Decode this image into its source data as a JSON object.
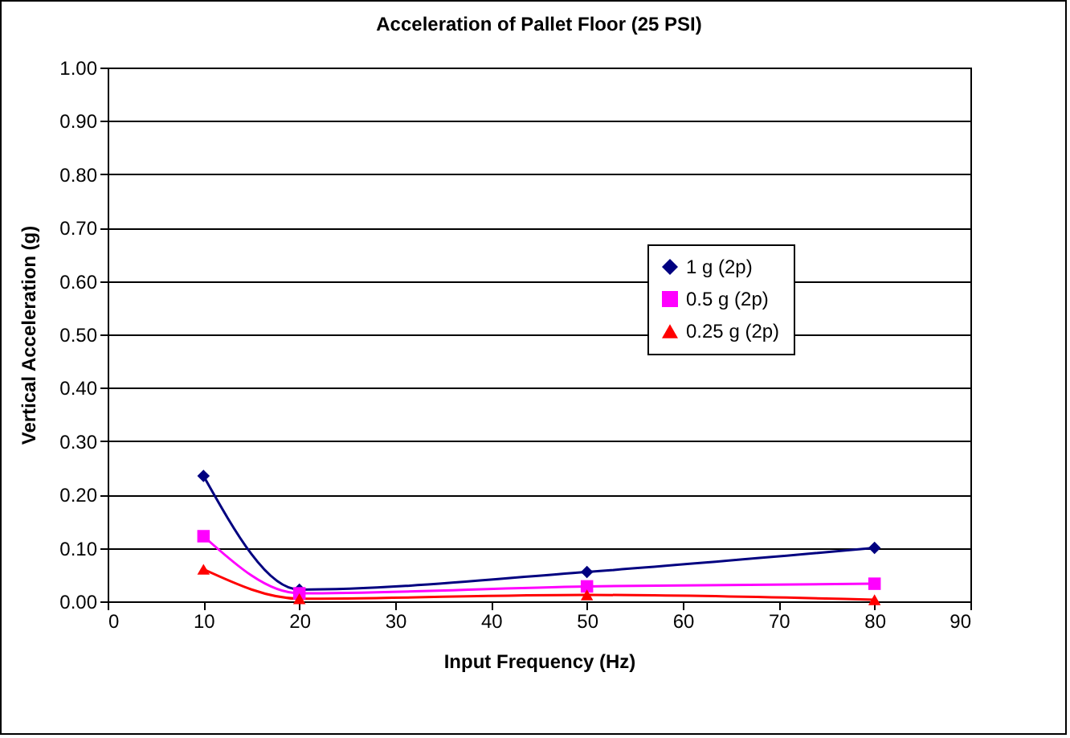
{
  "chart_data": {
    "type": "line",
    "title": "Acceleration of Pallet Floor (25 PSI)",
    "xlabel": "Input Frequency (Hz)",
    "ylabel": "Vertical Acceleration (g)",
    "x": [
      10,
      20,
      50,
      80
    ],
    "series": [
      {
        "name": "1 g (2p)",
        "color": "#000080",
        "marker": "diamond",
        "values": [
          0.235,
          0.022,
          0.055,
          0.1
        ]
      },
      {
        "name": "0.5 g (2p)",
        "color": "#ff00ff",
        "marker": "square",
        "values": [
          0.122,
          0.015,
          0.028,
          0.033
        ]
      },
      {
        "name": "0.25 g (2p)",
        "color": "#ff0000",
        "marker": "triangle",
        "values": [
          0.06,
          0.005,
          0.012,
          0.003
        ]
      }
    ],
    "xlim": [
      0,
      90
    ],
    "xticks": [
      0,
      10,
      20,
      30,
      40,
      50,
      60,
      70,
      80,
      90
    ],
    "ylim": [
      0,
      1
    ],
    "yticks": [
      {
        "value": 0,
        "label": "0.00"
      },
      {
        "value": 0.1,
        "label": "0.10"
      },
      {
        "value": 0.2,
        "label": "0.20"
      },
      {
        "value": 0.3,
        "label": "0.30"
      },
      {
        "value": 0.4,
        "label": "0.40"
      },
      {
        "value": 0.5,
        "label": "0.50"
      },
      {
        "value": 0.6,
        "label": "0.60"
      },
      {
        "value": 0.7,
        "label": "0.70"
      },
      {
        "value": 0.8,
        "label": "0.80"
      },
      {
        "value": 0.9,
        "label": "0.90"
      },
      {
        "value": 1,
        "label": "1.00"
      }
    ],
    "grid": "y",
    "legend": "top right"
  }
}
